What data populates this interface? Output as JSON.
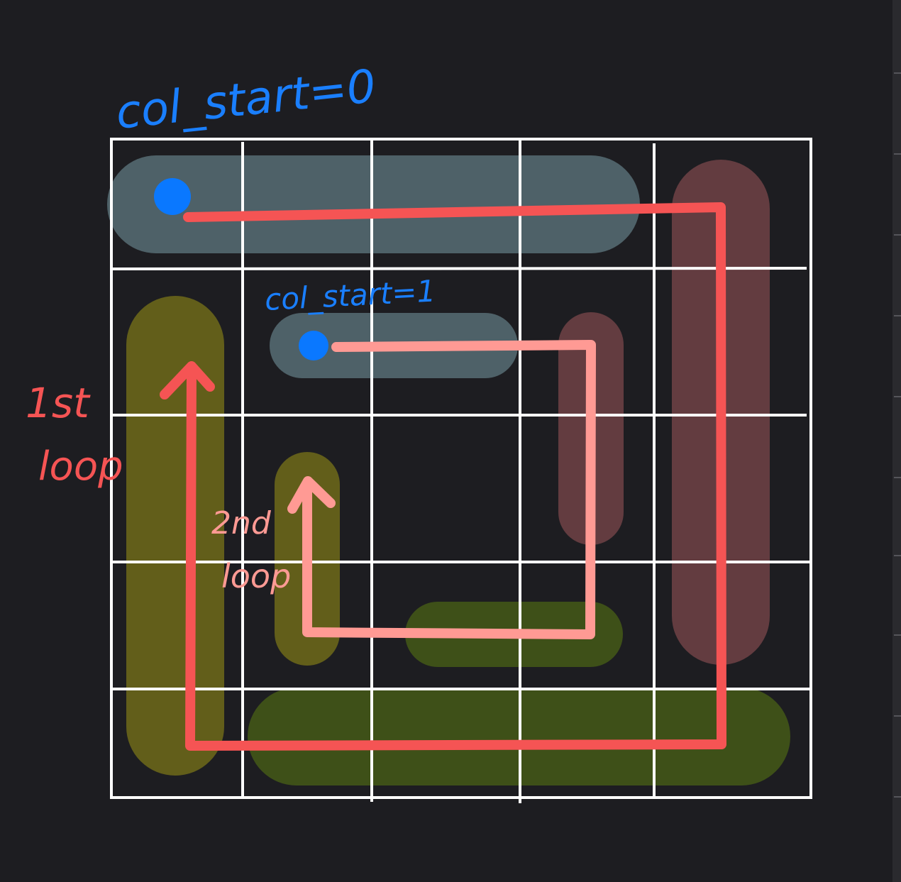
{
  "labels": {
    "col_start_0": "col_start=0",
    "col_start_1": "col_start=1",
    "first_loop_line1": "1st",
    "first_loop_line2": "loop",
    "second_loop_line1": "2nd",
    "second_loop_line2": "loop"
  },
  "colors": {
    "background": "#1d1d21",
    "grid_line": "#ffffff",
    "annotation_blue": "#1a7fff",
    "start_dot": "#0a78ff",
    "first_loop_path": "#f55454",
    "second_loop_path": "#ff9a94",
    "top_row_band": "#4e6168",
    "right_column_band": "#633c40",
    "left_column_band": "#625e1a",
    "bottom_row_band": "#3e5018"
  },
  "grid": {
    "rows": 5,
    "cols": 5
  }
}
